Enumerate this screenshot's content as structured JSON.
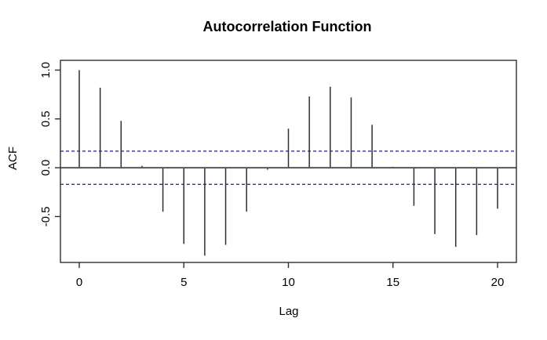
{
  "chart_data": {
    "type": "bar",
    "subtype": "acf-stem-plot",
    "title": "Autocorrelation Function",
    "xlabel": "Lag",
    "ylabel": "ACF",
    "x": [
      0,
      1,
      2,
      3,
      4,
      5,
      6,
      7,
      8,
      9,
      10,
      11,
      12,
      13,
      14,
      15,
      16,
      17,
      18,
      19,
      20
    ],
    "values": [
      1.0,
      0.82,
      0.48,
      0.02,
      -0.45,
      -0.78,
      -0.9,
      -0.79,
      -0.45,
      -0.02,
      0.4,
      0.73,
      0.83,
      0.72,
      0.44,
      0.01,
      -0.39,
      -0.68,
      -0.81,
      -0.69,
      -0.42
    ],
    "confidence_bounds": {
      "upper": 0.17,
      "lower": -0.17,
      "line_style": "dashed"
    },
    "x_ticks": [
      {
        "value": 0,
        "label": "0"
      },
      {
        "value": 5,
        "label": "5"
      },
      {
        "value": 10,
        "label": "10"
      },
      {
        "value": 15,
        "label": "15"
      },
      {
        "value": 20,
        "label": "20"
      }
    ],
    "y_ticks": [
      {
        "value": 1.0,
        "label": "1.0"
      },
      {
        "value": 0.5,
        "label": "0.5"
      },
      {
        "value": 0.0,
        "label": "0.0"
      },
      {
        "value": -0.5,
        "label": "-0.5"
      }
    ],
    "xlim": [
      -0.9,
      20.9
    ],
    "ylim": [
      -0.97,
      1.1
    ],
    "grid": false,
    "legend": "none",
    "colors": {
      "background": "#ffffff",
      "text": "#000000",
      "bar": "#2f2f2f",
      "box": "#2f2f2f",
      "zero_line": "#575757",
      "confidence_line": "#2e2e9e"
    }
  }
}
